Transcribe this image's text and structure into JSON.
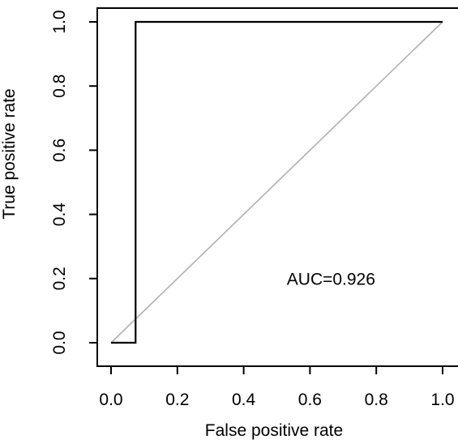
{
  "chart_data": {
    "type": "line",
    "xlabel": "False positive rate",
    "ylabel": "True positive rate",
    "xlim": [
      0,
      1
    ],
    "ylim": [
      0,
      1
    ],
    "x_ticks": [
      "0.0",
      "0.2",
      "0.4",
      "0.6",
      "0.8",
      "1.0"
    ],
    "y_ticks": [
      "0.0",
      "0.2",
      "0.4",
      "0.6",
      "0.8",
      "1.0"
    ],
    "grid": false,
    "series": [
      {
        "role": "roc-curve",
        "color": "#000000",
        "points": [
          [
            0,
            0
          ],
          [
            0.074,
            0
          ],
          [
            0.074,
            1
          ],
          [
            1,
            1
          ]
        ]
      },
      {
        "role": "chance-diagonal",
        "color": "#b0b0b0",
        "points": [
          [
            0,
            0
          ],
          [
            1,
            1
          ]
        ]
      }
    ],
    "annotations": [
      {
        "text": "AUC=0.926",
        "x": 0.53,
        "y": 0.18
      }
    ]
  }
}
